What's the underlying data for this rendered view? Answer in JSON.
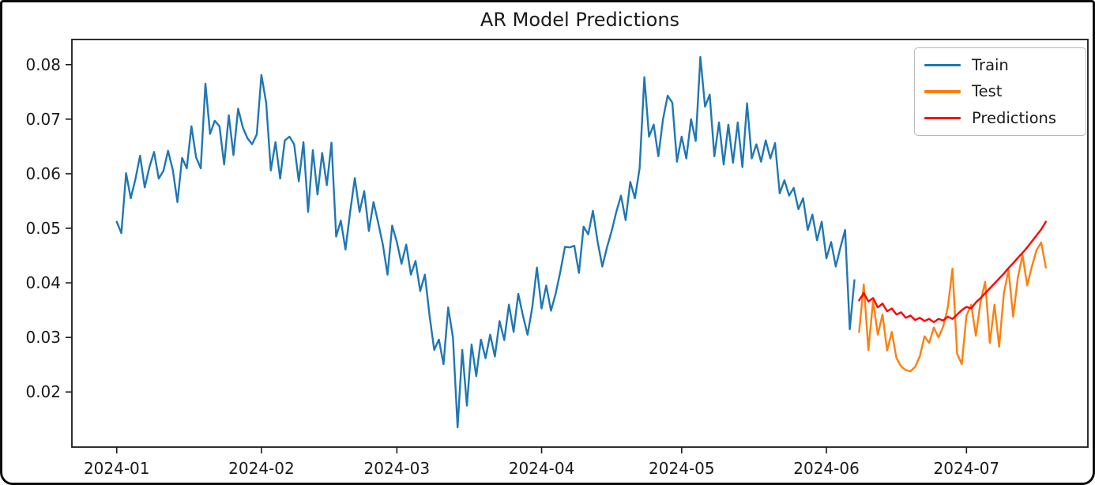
{
  "figure": {
    "title": "AR Model Predictions"
  },
  "legend": {
    "position": "upper right",
    "items": [
      {
        "label": "Train",
        "color": "#1f77b4"
      },
      {
        "label": "Test",
        "color": "#ff7f0e"
      },
      {
        "label": "Predictions",
        "color": "#ff0000"
      }
    ]
  },
  "axes": {
    "x_ticks": [
      {
        "label": "2024-01",
        "day": 0
      },
      {
        "label": "2024-02",
        "day": 31
      },
      {
        "label": "2024-03",
        "day": 60
      },
      {
        "label": "2024-04",
        "day": 91
      },
      {
        "label": "2024-05",
        "day": 121
      },
      {
        "label": "2024-06",
        "day": 152
      },
      {
        "label": "2024-07",
        "day": 182
      }
    ],
    "y_ticks": [
      {
        "label": "0.02",
        "value": 0.02
      },
      {
        "label": "0.03",
        "value": 0.03
      },
      {
        "label": "0.04",
        "value": 0.04
      },
      {
        "label": "0.05",
        "value": 0.05
      },
      {
        "label": "0.06",
        "value": 0.06
      },
      {
        "label": "0.07",
        "value": 0.07
      },
      {
        "label": "0.08",
        "value": 0.08
      }
    ]
  },
  "chart_data": {
    "type": "line",
    "title": "AR Model Predictions",
    "grid": false,
    "legend_position": "upper right",
    "x_axis": {
      "unit": "date (daily)",
      "day0_date": "2024-01-01",
      "day_range": [
        -9.6,
        208
      ],
      "tick_labels": [
        "2024-01",
        "2024-02",
        "2024-03",
        "2024-04",
        "2024-05",
        "2024-06",
        "2024-07"
      ]
    },
    "y_axis": {
      "range": [
        0.0099,
        0.0846
      ],
      "ticks": [
        0.02,
        0.03,
        0.04,
        0.05,
        0.06,
        0.07,
        0.08
      ]
    },
    "series": [
      {
        "name": "Train",
        "color": "#1f77b4",
        "start_date": "2024-01-01",
        "start_day": 0,
        "frequency": "daily",
        "values": [
          0.0512,
          0.0491,
          0.0601,
          0.0555,
          0.059,
          0.0633,
          0.0575,
          0.0612,
          0.064,
          0.0591,
          0.0605,
          0.0642,
          0.0607,
          0.0548,
          0.0629,
          0.061,
          0.0687,
          0.063,
          0.061,
          0.0765,
          0.0673,
          0.0697,
          0.0687,
          0.0617,
          0.0707,
          0.0634,
          0.0719,
          0.0685,
          0.0665,
          0.0654,
          0.0672,
          0.0781,
          0.073,
          0.0606,
          0.0658,
          0.0591,
          0.0661,
          0.0668,
          0.0654,
          0.0586,
          0.0658,
          0.053,
          0.0643,
          0.0562,
          0.0638,
          0.0579,
          0.0657,
          0.0485,
          0.0514,
          0.0461,
          0.053,
          0.0592,
          0.053,
          0.0568,
          0.0495,
          0.0548,
          0.051,
          0.047,
          0.0415,
          0.0505,
          0.0475,
          0.0435,
          0.047,
          0.0415,
          0.044,
          0.0385,
          0.0415,
          0.034,
          0.0277,
          0.0296,
          0.0251,
          0.0355,
          0.03,
          0.0135,
          0.0277,
          0.0175,
          0.0287,
          0.0229,
          0.0296,
          0.0262,
          0.0305,
          0.0265,
          0.033,
          0.0295,
          0.036,
          0.031,
          0.038,
          0.034,
          0.0305,
          0.0355,
          0.0428,
          0.0353,
          0.0395,
          0.0349,
          0.038,
          0.042,
          0.0466,
          0.0465,
          0.0468,
          0.0418,
          0.0503,
          0.0489,
          0.0532,
          0.0475,
          0.043,
          0.0465,
          0.0495,
          0.053,
          0.056,
          0.0515,
          0.0585,
          0.0555,
          0.061,
          0.0777,
          0.0668,
          0.069,
          0.0632,
          0.07,
          0.0743,
          0.073,
          0.0622,
          0.0668,
          0.0628,
          0.07,
          0.066,
          0.0814,
          0.0723,
          0.0745,
          0.0632,
          0.0694,
          0.0617,
          0.069,
          0.062,
          0.0694,
          0.0612,
          0.0729,
          0.0628,
          0.0654,
          0.0622,
          0.0661,
          0.0628,
          0.0656,
          0.0564,
          0.0588,
          0.056,
          0.0574,
          0.0535,
          0.0555,
          0.0497,
          0.0525,
          0.0478,
          0.0512,
          0.0445,
          0.0475,
          0.043,
          0.0465,
          0.0497,
          0.0315,
          0.0405
        ]
      },
      {
        "name": "Test",
        "color": "#ff7f0e",
        "start_date": "2024-06-08",
        "start_day": 159,
        "frequency": "daily",
        "values": [
          0.031,
          0.0397,
          0.0277,
          0.0367,
          0.0305,
          0.0342,
          0.0276,
          0.031,
          0.0262,
          0.0247,
          0.024,
          0.0238,
          0.0246,
          0.0265,
          0.0302,
          0.029,
          0.0318,
          0.03,
          0.032,
          0.0355,
          0.0426,
          0.027,
          0.0251,
          0.034,
          0.036,
          0.0303,
          0.0365,
          0.0402,
          0.029,
          0.036,
          0.0283,
          0.038,
          0.0424,
          0.0338,
          0.041,
          0.0451,
          0.0395,
          0.043,
          0.046,
          0.0474,
          0.0428
        ]
      },
      {
        "name": "Predictions",
        "color": "#ff0000",
        "start_date": "2024-06-08",
        "start_day": 159,
        "frequency": "daily",
        "values": [
          0.0368,
          0.0381,
          0.0366,
          0.0372,
          0.0355,
          0.0362,
          0.0348,
          0.0353,
          0.0342,
          0.0346,
          0.0336,
          0.034,
          0.0332,
          0.0336,
          0.033,
          0.0334,
          0.0328,
          0.0334,
          0.0331,
          0.0338,
          0.0334,
          0.0342,
          0.035,
          0.0356,
          0.0353,
          0.0364,
          0.0372,
          0.0381,
          0.039,
          0.0399,
          0.0408,
          0.0417,
          0.0427,
          0.0436,
          0.0446,
          0.0455,
          0.0465,
          0.0476,
          0.0487,
          0.0498,
          0.0512
        ]
      }
    ]
  }
}
